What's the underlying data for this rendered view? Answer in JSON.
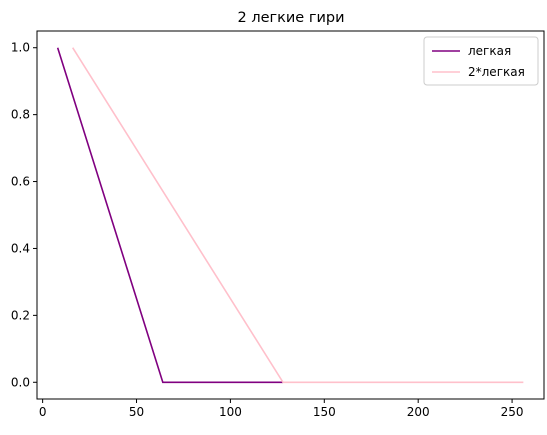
{
  "chart_data": {
    "type": "line",
    "title": "2 легкие гири",
    "xlabel": "",
    "ylabel": "",
    "xlim": [
      -3,
      267
    ],
    "ylim": [
      -0.05,
      1.05
    ],
    "x_ticks": [
      0,
      50,
      100,
      150,
      200,
      250
    ],
    "y_ticks": [
      0.0,
      0.2,
      0.4,
      0.6,
      0.8,
      1.0
    ],
    "x_tick_labels": [
      "0",
      "50",
      "100",
      "150",
      "200",
      "250"
    ],
    "y_tick_labels": [
      "0.0",
      "0.2",
      "0.4",
      "0.6",
      "0.8",
      "1.0"
    ],
    "grid": false,
    "legend_position": "top-right",
    "series": [
      {
        "name": "легкая",
        "color": "#800080",
        "x": [
          8,
          64,
          128
        ],
        "y": [
          1.0,
          0.0,
          0.0
        ]
      },
      {
        "name": "2*легкая",
        "color": "#ffc0cb",
        "x": [
          16,
          128,
          256
        ],
        "y": [
          1.0,
          0.0,
          0.0
        ]
      }
    ]
  }
}
